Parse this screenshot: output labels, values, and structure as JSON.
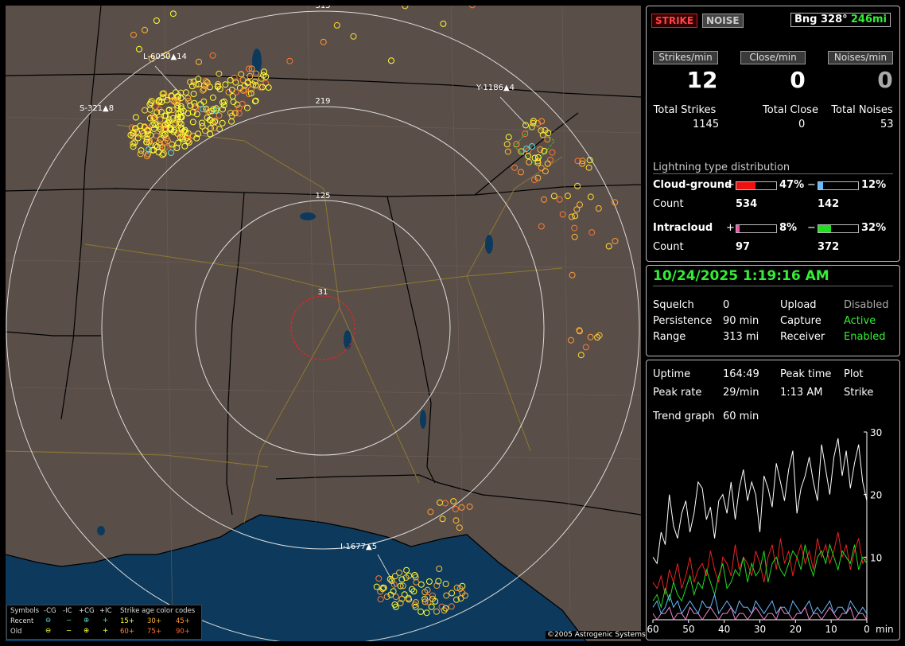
{
  "map": {
    "ring_labels": [
      "313",
      "219",
      "125",
      "31"
    ],
    "tags": [
      {
        "text": "L-6050▲14",
        "id": "tag-l"
      },
      {
        "text": "S-321▲8",
        "id": "tag-s"
      },
      {
        "text": "Y-1186▲4",
        "id": "tag-y"
      },
      {
        "text": "I-1677▲5",
        "id": "tag-i"
      }
    ],
    "copyright": "©2005 Astrogenic Systems",
    "colors": {
      "land": "#5a4e48",
      "water": "#0d3a5c",
      "recent": "#ffff33",
      "old": "#ff9933",
      "cyan": "#55dddd"
    }
  },
  "legend": {
    "symbols_label": "Symbols",
    "col_headers": [
      "-CG",
      "-IC",
      "+CG",
      "+IC"
    ],
    "age_header": "Strike age color codes",
    "rows": [
      {
        "label": "Recent",
        "ages": [
          "15+",
          "30+",
          "45+"
        ]
      },
      {
        "label": "Old",
        "ages": [
          "60+",
          "75+",
          "90+"
        ]
      }
    ]
  },
  "status": {
    "strike_tab": "STRIKE",
    "noise_tab": "NOISE",
    "bearing": "Bng 328°",
    "distance": "246mi"
  },
  "rates": [
    {
      "label": "Strikes/min",
      "value": "12",
      "total_label": "Total Strikes",
      "total": "1145"
    },
    {
      "label": "Close/min",
      "value": "0",
      "total_label": "Total Close",
      "total": "0"
    },
    {
      "label": "Noises/min",
      "value": "0",
      "total_label": "Total Noises",
      "total": "53"
    }
  ],
  "distribution": {
    "title": "Lightning type distribution",
    "cg_label": "Cloud-ground",
    "ic_label": "Intracloud",
    "count_label": "Count",
    "cg_plus": {
      "sign": "+",
      "pct": "47%",
      "fill": 0.47,
      "count": "534",
      "color": "#ee1111"
    },
    "cg_minus": {
      "sign": "−",
      "pct": "12%",
      "fill": 0.12,
      "count": "142",
      "color": "#66bbff"
    },
    "ic_plus": {
      "sign": "+",
      "pct": "8%",
      "fill": 0.08,
      "count": "97",
      "color": "#ee55aa"
    },
    "ic_minus": {
      "sign": "−",
      "pct": "32%",
      "fill": 0.32,
      "count": "372",
      "color": "#22dd22"
    }
  },
  "datetime": "10/24/2025 1:19:16 AM",
  "settings": {
    "squelch_label": "Squelch",
    "squelch": "0",
    "persistence_label": "Persistence",
    "persistence": "90 min",
    "range_label": "Range",
    "range": "313 mi",
    "upload_label": "Upload",
    "upload": "Disabled",
    "capture_label": "Capture",
    "capture": "Active",
    "receiver_label": "Receiver",
    "receiver": "Enabled"
  },
  "stats": {
    "uptime_label": "Uptime",
    "uptime": "164:49",
    "peak_time_label": "Peak time",
    "peak_time": "1:13 AM",
    "plot_label": "Plot",
    "plot": "Strike",
    "peak_rate_label": "Peak rate",
    "peak_rate": "29/min",
    "trend_label": "Trend graph",
    "trend": "60 min"
  },
  "chart_data": {
    "type": "line",
    "title": "",
    "x_ticks": [
      "60",
      "50",
      "40",
      "30",
      "20",
      "10",
      "0"
    ],
    "x_unit": "min",
    "y_ticks": [
      "30",
      "20",
      "10"
    ],
    "ylim": [
      0,
      30
    ],
    "xlim": [
      60,
      0
    ],
    "series": [
      {
        "color": "#ffffff",
        "values": [
          10,
          9,
          14,
          12,
          20,
          15,
          13,
          17,
          19,
          14,
          17,
          22,
          21,
          16,
          18,
          13,
          19,
          20,
          17,
          22,
          16,
          21,
          24,
          19,
          22,
          20,
          14,
          23,
          21,
          18,
          25,
          22,
          19,
          24,
          27,
          17,
          21,
          23,
          26,
          22,
          19,
          28,
          24,
          20,
          26,
          29,
          23,
          27,
          21,
          25,
          28,
          22,
          19
        ]
      },
      {
        "color": "#ee2222",
        "values": [
          6,
          5,
          7,
          4,
          8,
          6,
          9,
          5,
          7,
          10,
          6,
          8,
          9,
          7,
          11,
          8,
          6,
          10,
          9,
          7,
          12,
          8,
          10,
          9,
          7,
          11,
          9,
          6,
          10,
          12,
          8,
          13,
          9,
          11,
          7,
          10,
          12,
          9,
          11,
          8,
          13,
          10,
          12,
          9,
          11,
          14,
          10,
          12,
          8,
          11,
          13,
          9,
          10
        ]
      },
      {
        "color": "#22dd22",
        "values": [
          3,
          4,
          2,
          5,
          3,
          6,
          4,
          3,
          5,
          7,
          4,
          6,
          5,
          8,
          6,
          4,
          7,
          9,
          5,
          6,
          8,
          7,
          10,
          6,
          9,
          7,
          8,
          11,
          6,
          9,
          10,
          8,
          7,
          9,
          11,
          10,
          8,
          12,
          9,
          7,
          10,
          11,
          9,
          12,
          10,
          8,
          11,
          10,
          9,
          12,
          8,
          10,
          9
        ]
      },
      {
        "color": "#66bbff",
        "values": [
          2,
          3,
          1,
          2,
          4,
          2,
          3,
          1,
          2,
          3,
          2,
          1,
          3,
          2,
          2,
          4,
          1,
          2,
          3,
          2,
          1,
          3,
          2,
          2,
          1,
          3,
          2,
          1,
          2,
          3,
          1,
          2,
          2,
          1,
          3,
          2,
          1,
          2,
          3,
          1,
          2,
          1,
          2,
          3,
          1,
          2,
          2,
          1,
          3,
          2,
          1,
          2,
          1
        ]
      },
      {
        "color": "#ee88cc",
        "values": [
          1,
          0,
          1,
          1,
          2,
          0,
          1,
          1,
          0,
          2,
          1,
          1,
          0,
          1,
          2,
          1,
          0,
          1,
          1,
          2,
          0,
          1,
          1,
          0,
          1,
          2,
          1,
          0,
          1,
          1,
          0,
          2,
          1,
          1,
          0,
          1,
          1,
          2,
          0,
          1,
          1,
          0,
          1,
          2,
          1,
          0,
          1,
          1,
          2,
          0,
          1,
          1,
          0
        ]
      }
    ]
  }
}
